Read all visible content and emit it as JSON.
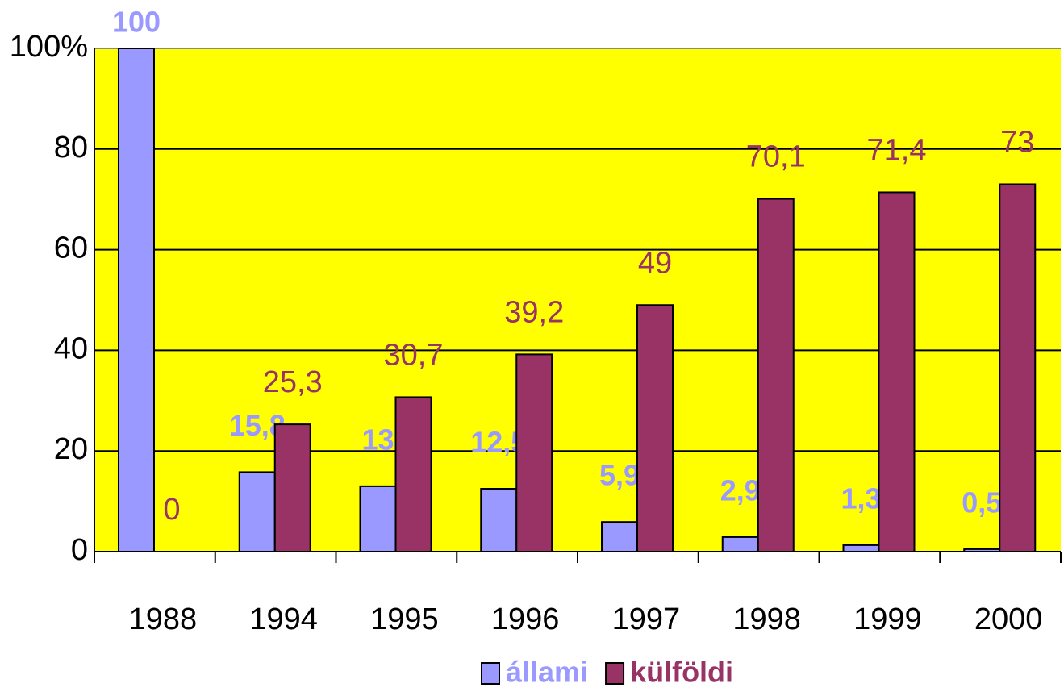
{
  "chart_data": {
    "type": "bar",
    "categories": [
      "1988",
      "1994",
      "1995",
      "1996",
      "1997",
      "1998",
      "1999",
      "2000"
    ],
    "series": [
      {
        "name": "állami",
        "color": "#9999ff",
        "values": [
          100,
          15.8,
          13,
          12.5,
          5.9,
          2.9,
          1.3,
          0.5
        ],
        "value_labels": [
          "100",
          "15,8",
          "13",
          "12,5",
          "5,9",
          "2,9",
          "1,3",
          "0,5"
        ]
      },
      {
        "name": "külföldi",
        "color": "#993366",
        "values": [
          0,
          25.3,
          30.7,
          39.2,
          49,
          70.1,
          71.4,
          73
        ],
        "value_labels": [
          "0",
          "25,3",
          "30,7",
          "39,2",
          "49",
          "70,1",
          "71,4",
          "73"
        ]
      }
    ],
    "ylim": [
      0,
      100
    ],
    "yticks": [
      0,
      20,
      40,
      60,
      80,
      {
        "value": 100,
        "label": "100%"
      }
    ],
    "grid": true,
    "plot_background": "#ffff00",
    "legend": "bottom"
  }
}
